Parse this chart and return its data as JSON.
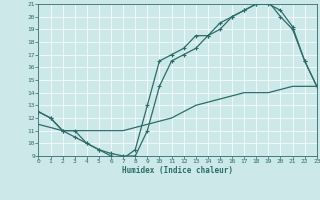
{
  "xlabel": "Humidex (Indice chaleur)",
  "bg_color": "#cde8e8",
  "line_color": "#2d6b6b",
  "grid_color": "#b8d8d8",
  "xlim": [
    0,
    23
  ],
  "ylim": [
    9,
    21
  ],
  "xticks": [
    0,
    1,
    2,
    3,
    4,
    5,
    6,
    7,
    8,
    9,
    10,
    11,
    12,
    13,
    14,
    15,
    16,
    17,
    18,
    19,
    20,
    21,
    22,
    23
  ],
  "yticks": [
    9,
    10,
    11,
    12,
    13,
    14,
    15,
    16,
    17,
    18,
    19,
    20,
    21
  ],
  "line1_x": [
    0,
    1,
    2,
    3,
    4,
    5,
    6,
    7,
    8,
    9,
    10,
    11,
    12,
    13,
    14,
    15,
    16,
    17,
    18,
    19,
    20,
    21,
    22,
    23
  ],
  "line1_y": [
    12.5,
    12,
    11,
    10.5,
    10,
    9.5,
    9,
    8.8,
    9.5,
    13,
    16.5,
    17,
    17.5,
    18.5,
    18.5,
    19.5,
    20,
    20.5,
    21,
    21.2,
    20,
    19,
    16.5,
    14.5
  ],
  "line2_x": [
    0,
    1,
    2,
    3,
    4,
    5,
    6,
    7,
    8,
    9,
    10,
    11,
    12,
    13,
    14,
    15,
    16,
    17,
    18,
    19,
    20,
    21,
    22,
    23
  ],
  "line2_y": [
    12.5,
    12,
    11,
    11,
    10,
    9.5,
    9.2,
    9,
    9,
    11,
    14.5,
    16.5,
    17,
    17.5,
    18.5,
    19,
    20,
    20.5,
    21,
    21,
    20.5,
    19.2,
    16.5,
    14.5
  ],
  "line3_x": [
    0,
    2,
    5,
    7,
    9,
    11,
    13,
    15,
    17,
    19,
    21,
    23
  ],
  "line3_y": [
    11.5,
    11,
    11,
    11,
    11.5,
    12,
    13,
    13.5,
    14,
    14,
    14.5,
    14.5
  ]
}
